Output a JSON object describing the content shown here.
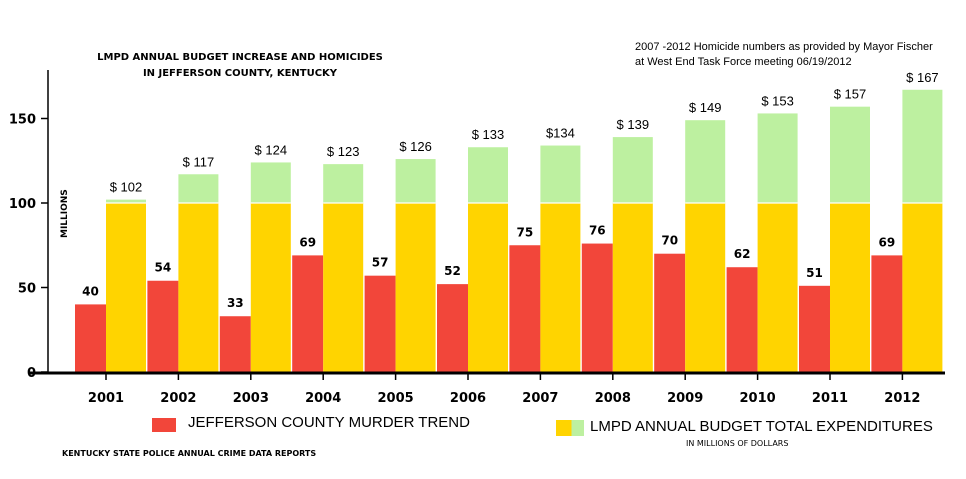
{
  "title_line1": "LMPD ANNUAL BUDGET INCREASE AND HOMICIDES",
  "title_line2": "IN JEFFERSON COUNTY, KENTUCKY",
  "note_line1": "2007 -2012 Homicide numbers as provided by Mayor Fischer",
  "note_line2": "at West End Task Force meeting    06/19/2012",
  "source": "KENTUCKY STATE POLICE ANNUAL CRIME DATA REPORTS",
  "legend_sub": "IN MILLIONS OF DOLLARS",
  "colors": {
    "homicide": "#f2463a",
    "budget_base": "#ffd400",
    "budget_increase": "#bdf0a0"
  },
  "chart_data": {
    "type": "bar",
    "ylabel": "MILLIONS",
    "ylim": [
      0,
      175
    ],
    "yticks": [
      0,
      50,
      100,
      150
    ],
    "categories": [
      "2001",
      "2002",
      "2003",
      "2004",
      "2005",
      "2006",
      "2007",
      "2008",
      "2009",
      "2010",
      "2011",
      "2012"
    ],
    "series": [
      {
        "name": "JEFFERSON COUNTY MURDER TREND",
        "values": [
          40,
          54,
          33,
          69,
          57,
          52,
          75,
          76,
          70,
          62,
          51,
          69
        ],
        "labels": [
          "40",
          "54",
          "33",
          "69",
          "57",
          "52",
          "75",
          "76",
          "70",
          "62",
          "51",
          "69"
        ]
      },
      {
        "name": "LMPD ANNUAL BUDGET TOTAL EXPENDITURES",
        "values": [
          102,
          117,
          124,
          123,
          126,
          133,
          134,
          139,
          149,
          153,
          157,
          167
        ],
        "labels": [
          "$ 102",
          "$ 117",
          "$ 124",
          "$ 123",
          "$ 126",
          "$ 133",
          "$134",
          "$ 139",
          "$ 149",
          "$ 153",
          "$ 157",
          "$ 167"
        ],
        "base_split": 100
      }
    ],
    "grid": false,
    "legend": "bottom"
  }
}
